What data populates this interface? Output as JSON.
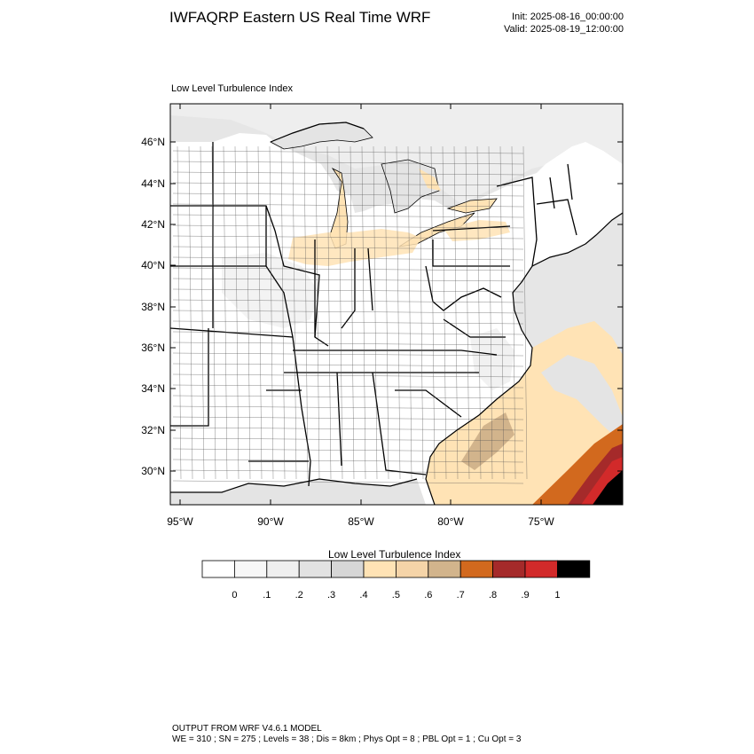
{
  "header": {
    "title": "IWFAQRP Eastern US Real Time WRF",
    "init": "Init: 2025-08-16_00:00:00",
    "valid": "Valid: 2025-08-19_12:00:00"
  },
  "plot": {
    "title": "Low Level Turbulence Index",
    "lat_labels": [
      "46°N",
      "44°N",
      "42°N",
      "40°N",
      "38°N",
      "36°N",
      "34°N",
      "32°N",
      "30°N"
    ],
    "lon_labels": [
      "95°W",
      "90°W",
      "85°W",
      "80°W",
      "75°W"
    ]
  },
  "colorbar": {
    "title": "Low Level Turbulence Index",
    "labels": [
      "0",
      ".1",
      ".2",
      ".3",
      ".4",
      ".5",
      ".6",
      ".7",
      ".8",
      ".9",
      "1"
    ],
    "colors": [
      "#ffffff",
      "#f7f7f7",
      "#efefef",
      "#e2e2e2",
      "#d6d6d6",
      "#ffe3b5",
      "#f5d4a8",
      "#d2b48c",
      "#d2691e",
      "#a52a2a",
      "#d22a2a",
      "#000000"
    ]
  },
  "footer": {
    "line1": "OUTPUT FROM WRF V4.6.1 MODEL",
    "line2": "WE = 310 ; SN = 275 ; Levels = 38 ; Dis = 8km ; Phys Opt = 8 ; PBL Opt = 1 ; Cu Opt = 3"
  },
  "colors": {
    "land": "#ffffff",
    "water": "#e4e4e4",
    "canada": "#efefef",
    "low_turb": "#ffe3b5",
    "mid_turb": "#d2b48c",
    "high_turb": "#d2691e",
    "very_high": "#a52a2a",
    "extreme": "#000000"
  }
}
